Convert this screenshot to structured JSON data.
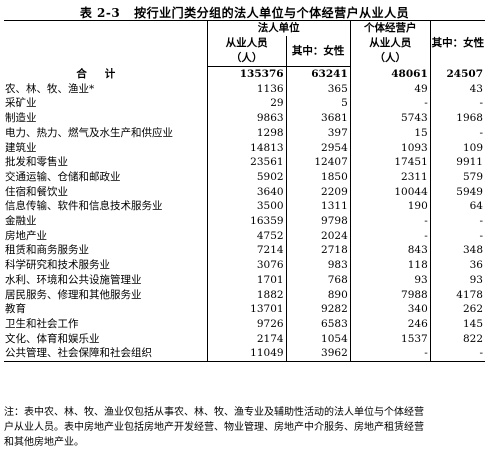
{
  "title": {
    "number": "表 2-3",
    "text": "按行业门类分组的法人单位与个体经营户从业人员"
  },
  "header": {
    "legal_main": "法人单位",
    "legal_sub": "从业人员",
    "legal_unit": "（人）",
    "legal_female": "其中：女性",
    "indiv_main": "个体经营户",
    "indiv_sub": "从业人员",
    "indiv_unit": "（人）",
    "indiv_female": "其中：女性"
  },
  "total": {
    "label": "合计",
    "values": [
      "135376",
      "63241",
      "48061",
      "24507"
    ]
  },
  "rows": [
    {
      "label": "农、林、牧、渔业*",
      "values": [
        "1136",
        "365",
        "49",
        "43"
      ]
    },
    {
      "label": "采矿业",
      "values": [
        "29",
        "5",
        "-",
        "-"
      ]
    },
    {
      "label": "制造业",
      "values": [
        "9863",
        "3681",
        "5743",
        "1968"
      ]
    },
    {
      "label": "电力、热力、燃气及水生产和供应业",
      "values": [
        "1298",
        "397",
        "15",
        "-"
      ]
    },
    {
      "label": "建筑业",
      "values": [
        "14813",
        "2954",
        "1093",
        "109"
      ]
    },
    {
      "label": "批发和零售业",
      "values": [
        "23561",
        "12407",
        "17451",
        "9911"
      ]
    },
    {
      "label": "交通运输、仓储和邮政业",
      "values": [
        "5902",
        "1850",
        "2311",
        "579"
      ]
    },
    {
      "label": "住宿和餐饮业",
      "values": [
        "3640",
        "2209",
        "10044",
        "5949"
      ]
    },
    {
      "label": "信息传输、软件和信息技术服务业",
      "values": [
        "3500",
        "1311",
        "190",
        "64"
      ]
    },
    {
      "label": "金融业",
      "values": [
        "16359",
        "9798",
        "-",
        "-"
      ]
    },
    {
      "label": "房地产业",
      "values": [
        "4752",
        "2024",
        "-",
        "-"
      ]
    },
    {
      "label": "租赁和商务服务业",
      "values": [
        "7214",
        "2718",
        "843",
        "348"
      ]
    },
    {
      "label": "科学研究和技术服务业",
      "values": [
        "3076",
        "983",
        "118",
        "36"
      ]
    },
    {
      "label": "水利、环境和公共设施管理业",
      "values": [
        "1701",
        "768",
        "93",
        "93"
      ]
    },
    {
      "label": "居民服务、修理和其他服务业",
      "values": [
        "1882",
        "890",
        "7988",
        "4178"
      ]
    },
    {
      "label": "教育",
      "values": [
        "13701",
        "9282",
        "340",
        "262"
      ]
    },
    {
      "label": "卫生和社会工作",
      "values": [
        "9726",
        "6583",
        "246",
        "145"
      ]
    },
    {
      "label": "文化、体育和娱乐业",
      "values": [
        "2174",
        "1054",
        "1537",
        "822"
      ]
    },
    {
      "label": "公共管理、社会保障和社会组织",
      "values": [
        "11049",
        "3962",
        "-",
        "-"
      ]
    }
  ],
  "note": {
    "line1": "注：表中农、林、牧、渔业仅包括从事农、林、牧、渔专业及辅助性活动的法人单位与个体经营",
    "line2": "户从业人员。表中房地产业包括房地产开发经营、物业管理、房地产中介服务、房地产租赁经营",
    "line3": "和其他房地产业。"
  }
}
